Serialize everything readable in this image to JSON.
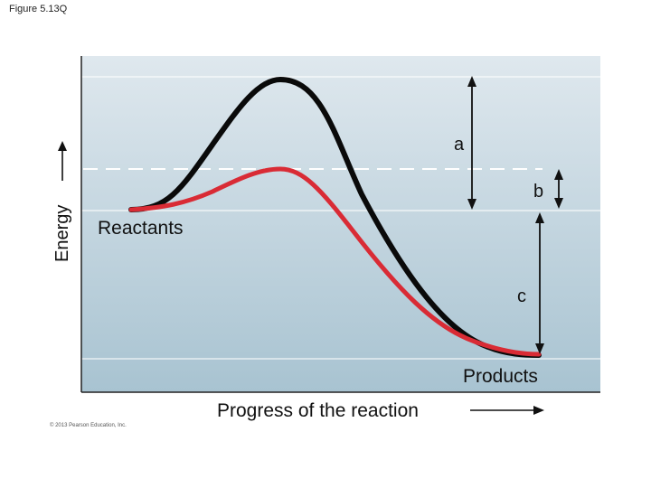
{
  "figure_label": "Figure 5.13Q",
  "copyright": "© 2013 Pearson Education, Inc.",
  "diagram": {
    "y_axis_label": "Energy",
    "x_axis_label": "Progress of the reaction",
    "reactants_label": "Reactants",
    "products_label": "Products",
    "label_a": "a",
    "label_b": "b",
    "label_c": "c",
    "colors": {
      "uncatalyzed_curve": "#0a0a0a",
      "catalyzed_curve": "#d92b35",
      "panel_top": "#dfe8ee",
      "panel_bottom": "#a8c3d1"
    }
  }
}
